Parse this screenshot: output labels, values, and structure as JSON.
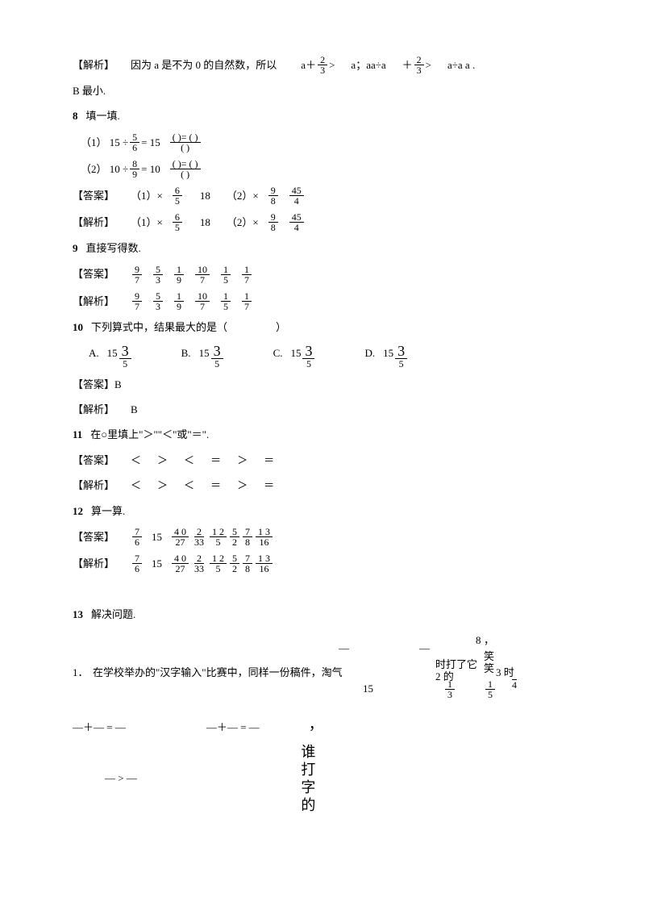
{
  "p1": {
    "label": "【解析】",
    "text1": "因为 a 是不为 0 的自然数，所以",
    "expr1a": "a＋",
    "f1n": "2",
    "f1d": "3",
    "gt1": ">",
    "expr2": "a；aa÷a",
    "expr3": "＋",
    "f2n": "2",
    "f2d": "3",
    "gt2": ">",
    "expr4": "a÷a  a ."
  },
  "p2": "B 最小.",
  "q8": {
    "num": "8",
    "title": "填一填.",
    "l1a": "（1）  15 ÷",
    "f1n": "5",
    "f1d": "6",
    "l1b": "=  15",
    "l1c": "( )= ( )",
    "par1": "( )",
    "l2a": "（2）  10 ÷",
    "f2n": "8",
    "f2d": "9",
    "l2b": "=  10",
    "l2c": "( )= ( )",
    "par2": "( )"
  },
  "ans8": {
    "label": "【答案】",
    "t1": "（1）×",
    "f1n": "6",
    "f1d": "5",
    "v1": "18",
    "t2": "（2）×",
    "f2n": "9",
    "f2d": "8",
    "f3n": "45",
    "f3d": "4"
  },
  "exp8": {
    "label": "【解析】",
    "t1": "（1）×",
    "f1n": "6",
    "f1d": "5",
    "v1": "18",
    "t2": "（2）×",
    "f2n": "9",
    "f2d": "8",
    "f3n": "45",
    "f3d": "4"
  },
  "q9": {
    "num": "9",
    "title": "直接写得数."
  },
  "ans9": {
    "label": "【答案】",
    "f": [
      {
        "n": "9",
        "d": "7"
      },
      {
        "n": "5",
        "d": "3"
      },
      {
        "n": "1",
        "d": "9"
      },
      {
        "n": "10",
        "d": "7"
      },
      {
        "n": "1",
        "d": "5"
      },
      {
        "n": "1",
        "d": "7"
      }
    ]
  },
  "exp9": {
    "label": "【解析】",
    "f": [
      {
        "n": "9",
        "d": "7"
      },
      {
        "n": "5",
        "d": "3"
      },
      {
        "n": "1",
        "d": "9"
      },
      {
        "n": "10",
        "d": "7"
      },
      {
        "n": "1",
        "d": "5"
      },
      {
        "n": "1",
        "d": "7"
      }
    ]
  },
  "q10": {
    "num": "10",
    "title": "下列算式中，结果最大的是（",
    "paren": "）",
    "A": "A.",
    "a1": "15",
    "big3a": "3",
    "fadn": "5",
    "B": "B.",
    "b1": "15",
    "big3b": "3",
    "fbdn": "5",
    "C": "C.",
    "c1": "15",
    "big3c": "3",
    "fcdn": "5",
    "D": "D.",
    "d1": "15",
    "big3d": "3",
    "fddn": "5"
  },
  "ans10": {
    "label": "【答案】B"
  },
  "exp10": {
    "label": "【解析】",
    "text": "B"
  },
  "q11": {
    "num": "11",
    "title": "在○里填上\"＞\"\"＜\"或\"＝\"."
  },
  "ans11": {
    "label": "【答案】",
    "seq": [
      "＜",
      "＞",
      "＜",
      "＝",
      "＞",
      "＝"
    ]
  },
  "exp11": {
    "label": "【解析】",
    "seq": [
      "＜",
      "＞",
      "＜",
      "＝",
      "＞",
      "＝"
    ]
  },
  "q12": {
    "num": "12",
    "title": "算一算."
  },
  "ans12": {
    "label": "【答案】",
    "f1": {
      "n": "7",
      "d": "6"
    },
    "v1": "15",
    "f2": {
      "n": "4 0",
      "d": "27"
    },
    "f3": {
      "n": "2",
      "d": "33"
    },
    "f4": {
      "n": "1 2",
      "d": "5"
    },
    "f5": {
      "n": "5",
      "d": "2"
    },
    "f6": {
      "n": "7",
      "d": "8"
    },
    "v2": "1 3",
    "d2": "16"
  },
  "exp12": {
    "label": "【解析】",
    "f1": {
      "n": "7",
      "d": "6"
    },
    "v1": "15",
    "f2": {
      "n": "4 0",
      "d": "27"
    },
    "f3": {
      "n": "2",
      "d": "33"
    },
    "f4": {
      "n": "1 2",
      "d": "5"
    },
    "f5": {
      "n": "5",
      "d": "2"
    },
    "f6": {
      "n": "7",
      "d": "8"
    },
    "v2": "1 3",
    "d2": "16"
  },
  "q13": {
    "num": "13",
    "title": "解决问题.",
    "line1a": "1．",
    "line1b": "在学校举办的\"汉字输入\"比赛中，同样一份稿件，淘气",
    "n15": "15",
    "top8": "8",
    "comma1": "，",
    "txt_time": "时打了它",
    "txt_2de": "2 的",
    "txt_xiao1": "笑",
    "txt_xiao2": "笑",
    "txt_3shi": "3 时",
    "fr_a": {
      "n": "1",
      "d": "3"
    },
    "fr_b": {
      "n": "1",
      "d": "5"
    },
    "fr_c": {
      "n": "",
      "d": "4"
    },
    "eq1": "—＋— = —",
    "eq2": "—＋— = —",
    "eq3": "— > —",
    "vert_text": "，谁打字的"
  }
}
